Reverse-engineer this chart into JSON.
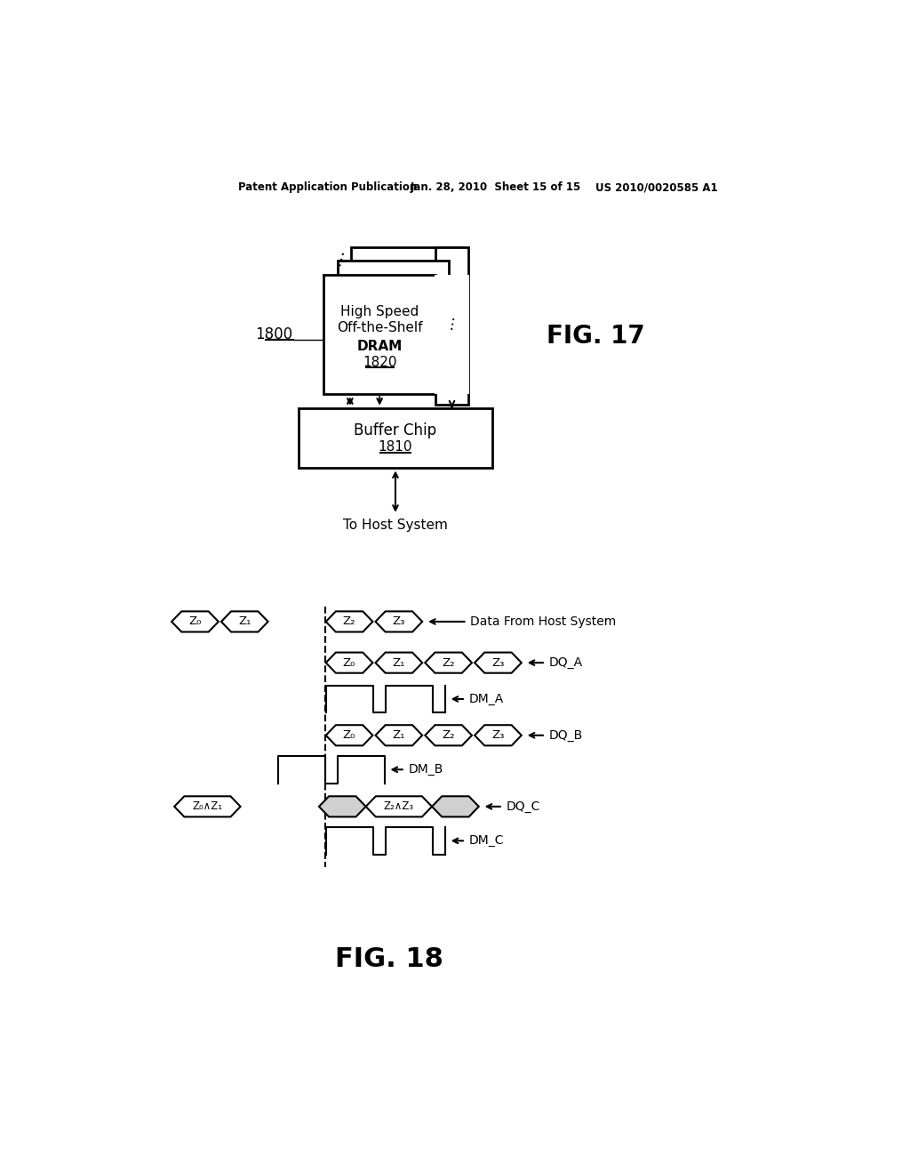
{
  "background_color": "#ffffff",
  "header_line1": "Patent Application Publication",
  "header_line2": "Jan. 28, 2010  Sheet 15 of 15",
  "header_line3": "US 2010/0020585 A1",
  "fig17_label": "FIG. 17",
  "fig18_label": "FIG. 18",
  "label_1800": "1800",
  "label_1820": "1820",
  "label_1810": "1810",
  "dram_text1": "High Speed",
  "dram_text2": "Off-the-Shelf",
  "dram_text3": "DRAM",
  "buf_text1": "Buffer Chip",
  "to_host": "To Host System",
  "sig_labels": [
    "Z₀",
    "Z₁",
    "Z₂",
    "Z₃"
  ],
  "dq_a_label": "DQ_A",
  "dm_a_label": "DM_A",
  "dq_b_label": "DQ_B",
  "dm_b_label": "DM_B",
  "dq_c_label": "DQ_C",
  "dm_c_label": "DM_C",
  "host_label": "Data From Host System",
  "dqc_label1": "Z₀∧Z₁",
  "dqc_label2": "Z₂∧Z₃"
}
